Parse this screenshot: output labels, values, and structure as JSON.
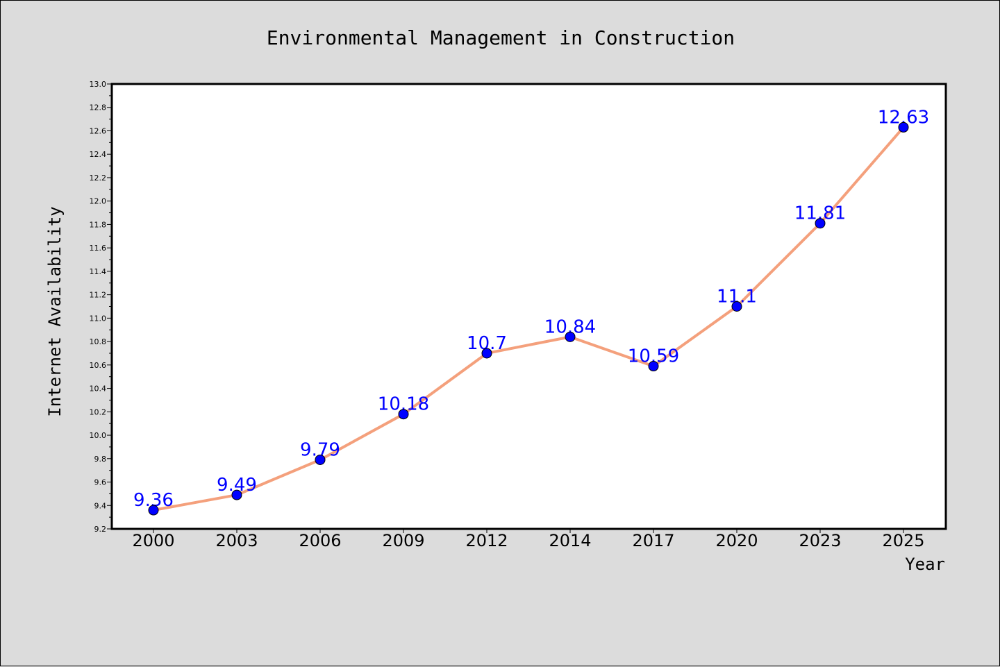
{
  "chart_data": {
    "type": "line",
    "title": "Environmental Management in Construction",
    "xlabel": "Year",
    "ylabel": "Internet Availability",
    "categories": [
      "2000",
      "2003",
      "2006",
      "2009",
      "2012",
      "2014",
      "2017",
      "2020",
      "2023",
      "2025"
    ],
    "series": [
      {
        "values": [
          9.36,
          9.49,
          9.79,
          10.18,
          10.7,
          10.84,
          10.59,
          11.1,
          11.81,
          12.63
        ],
        "data_labels": [
          "9.36",
          "9.49",
          "9.79",
          "10.18",
          "10.7",
          "10.84",
          "10.59",
          "11.1",
          "11.81",
          "12.63"
        ]
      }
    ],
    "ylim": [
      9.2,
      13.0
    ],
    "yticks": [
      "9.2",
      "9.4",
      "9.6",
      "9.8",
      "10.0",
      "10.2",
      "10.4",
      "10.6",
      "10.8",
      "11.0",
      "11.2",
      "11.4",
      "11.6",
      "11.8",
      "12.0",
      "12.2",
      "12.4",
      "12.6",
      "12.8",
      "13.0"
    ],
    "grid": false,
    "colors": {
      "line": "#f4a07c",
      "marker": "#0000ff",
      "data_label": "#0000ff",
      "plot_background": "#ffffff",
      "figure_background": "#dcdcdc"
    }
  }
}
